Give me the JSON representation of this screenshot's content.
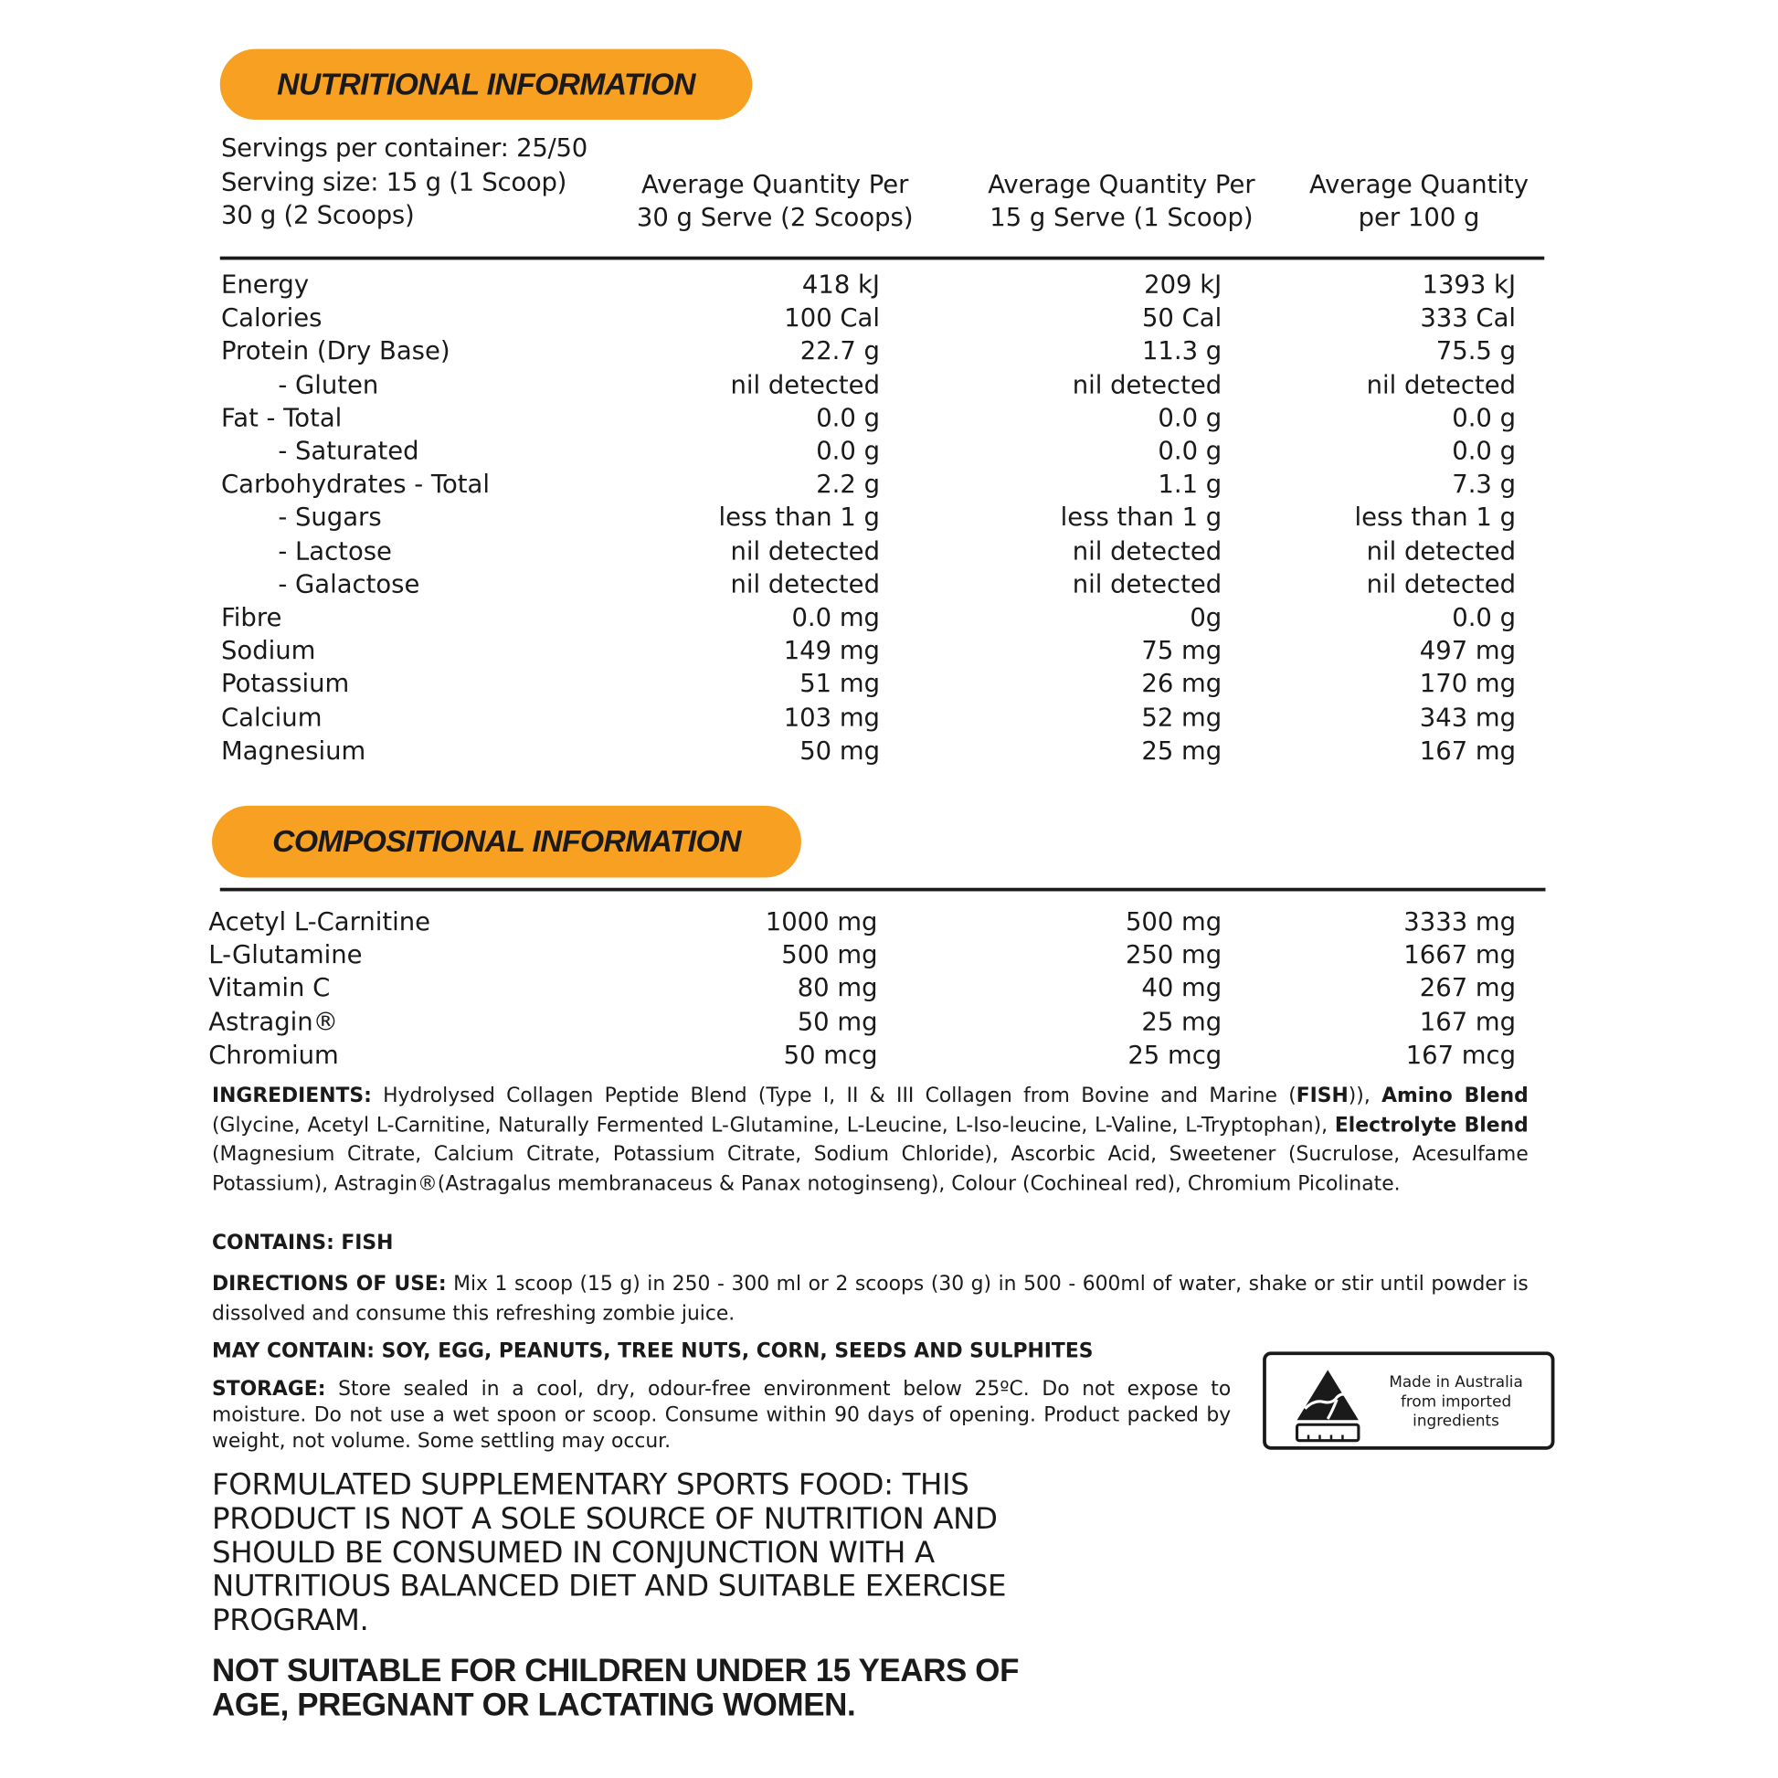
{
  "nutrition": {
    "title": "NUTRITIONAL INFORMATION",
    "servings": "Servings per container: 25/50",
    "serving_size_1": "Serving size: 15 g (1 Scoop)",
    "serving_size_2": "30 g (2 Scoops)",
    "headers": [
      [
        "Average Quantity Per",
        "30 g Serve (2 Scoops)"
      ],
      [
        "Average Quantity Per",
        "15 g Serve (1 Scoop)"
      ],
      [
        "Average Quantity",
        "per 100 g"
      ]
    ],
    "rows": [
      {
        "label": "Energy",
        "indent": false,
        "values": [
          "418 kJ",
          "209 kJ",
          "1393 kJ"
        ]
      },
      {
        "label": "Calories",
        "indent": false,
        "values": [
          "100 Cal",
          "50 Cal",
          "333 Cal"
        ]
      },
      {
        "label": "Protein (Dry Base)",
        "indent": false,
        "values": [
          "22.7 g",
          "11.3 g",
          "75.5 g"
        ]
      },
      {
        "label": "- Gluten",
        "indent": true,
        "values": [
          "nil detected",
          "nil detected",
          "nil detected"
        ]
      },
      {
        "label": "Fat  - Total",
        "indent": false,
        "values": [
          "0.0 g",
          "0.0 g",
          "0.0 g"
        ]
      },
      {
        "label": "- Saturated",
        "indent": true,
        "values": [
          "0.0 g",
          "0.0 g",
          "0.0 g"
        ]
      },
      {
        "label": "Carbohydrates - Total",
        "indent": false,
        "values": [
          "2.2 g",
          "1.1 g",
          "7.3 g"
        ]
      },
      {
        "label": "- Sugars",
        "indent": true,
        "values": [
          "less than 1 g",
          "less than 1 g",
          "less than 1 g"
        ]
      },
      {
        "label": "- Lactose",
        "indent": true,
        "values": [
          "nil detected",
          "nil detected",
          "nil detected"
        ]
      },
      {
        "label": "- Galactose",
        "indent": true,
        "values": [
          "nil detected",
          "nil detected",
          "nil detected"
        ]
      },
      {
        "label": "Fibre",
        "indent": false,
        "values": [
          "0.0 mg",
          "0g",
          "0.0 g"
        ]
      },
      {
        "label": "Sodium",
        "indent": false,
        "values": [
          "149 mg",
          "75 mg",
          "497 mg"
        ]
      },
      {
        "label": "Potassium",
        "indent": false,
        "values": [
          "51 mg",
          "26 mg",
          "170 mg"
        ]
      },
      {
        "label": "Calcium",
        "indent": false,
        "values": [
          "103 mg",
          "52 mg",
          "343 mg"
        ]
      },
      {
        "label": "Magnesium",
        "indent": false,
        "values": [
          "50 mg",
          "25 mg",
          "167 mg"
        ]
      }
    ]
  },
  "composition": {
    "title": "COMPOSITIONAL INFORMATION",
    "rows": [
      {
        "label": "Acetyl L-Carnitine",
        "values": [
          "1000 mg",
          "500 mg",
          "3333 mg"
        ]
      },
      {
        "label": "L-Glutamine",
        "values": [
          "500 mg",
          "250 mg",
          "1667 mg"
        ]
      },
      {
        "label": "Vitamin C",
        "values": [
          "80 mg",
          "40 mg",
          "267 mg"
        ]
      },
      {
        "label": "Astragin®",
        "values": [
          "50 mg",
          "25 mg",
          "167 mg"
        ]
      },
      {
        "label": "Chromium",
        "values": [
          "50 mcg",
          "25 mcg",
          "167 mcg"
        ]
      }
    ]
  },
  "ingredients": {
    "label": "INGREDIENTS:",
    "p1": " Hydrolysed Collagen Peptide Blend (Type I, II & III Collagen from Bovine and Marine (",
    "fish": "FISH",
    "p2": ")), ",
    "amino": "Amino Blend",
    "p3": " (Glycine, Acetyl L-Carnitine, Naturally Fermented L-Glutamine, L-Leucine, L-Iso-leucine, L-Valine, L-Tryptophan), ",
    "electrolyte": "Electrolyte Blend",
    "p4": " (Magnesium Citrate, Calcium Citrate, Potassium Citrate, Sodium Chloride), Ascorbic Acid, Sweetener (Sucrulose, Acesulfame Potassium), Astragin®(Astragalus membranaceus & Panax notoginseng), Colour (Cochineal red), Chromium Picolinate."
  },
  "contains": "CONTAINS: FISH",
  "directions": {
    "label": "DIRECTIONS OF USE:",
    "text": " Mix 1 scoop (15 g) in 250 - 300 ml or 2 scoops (30 g) in 500 - 600ml of water, shake or stir until powder is dissolved and consume this refreshing zombie juice."
  },
  "may_contain": "MAY CONTAIN: SOY, EGG, PEANUTS, TREE NUTS, CORN, SEEDS AND SULPHITES",
  "storage": {
    "label": "STORAGE:",
    "text": " Store sealed in a cool, dry, odour-free environment below 25ºC. Do not expose to moisture. Do not use a wet spoon or scoop. Consume within 90 days of opening. Product packed by weight, not volume. Some settling may occur."
  },
  "badge": {
    "icon": "australian-made-kangaroo-icon",
    "lines": [
      "Made in Australia",
      "from imported",
      "ingredients"
    ]
  },
  "formulated": "FORMULATED SUPPLEMENTARY SPORTS FOOD: THIS PRODUCT IS NOT A SOLE SOURCE OF NUTRITION AND SHOULD BE CONSUMED IN CONJUNCTION WITH A NUTRITIOUS BALANCED DIET AND SUITABLE EXERCISE PROGRAM.",
  "warning": "NOT SUITABLE FOR CHILDREN UNDER 15 YEARS OF AGE, PREGNANT OR LACTATING WOMEN.",
  "colors": {
    "accent": "#F7A021",
    "text": "#1a1a1a"
  }
}
